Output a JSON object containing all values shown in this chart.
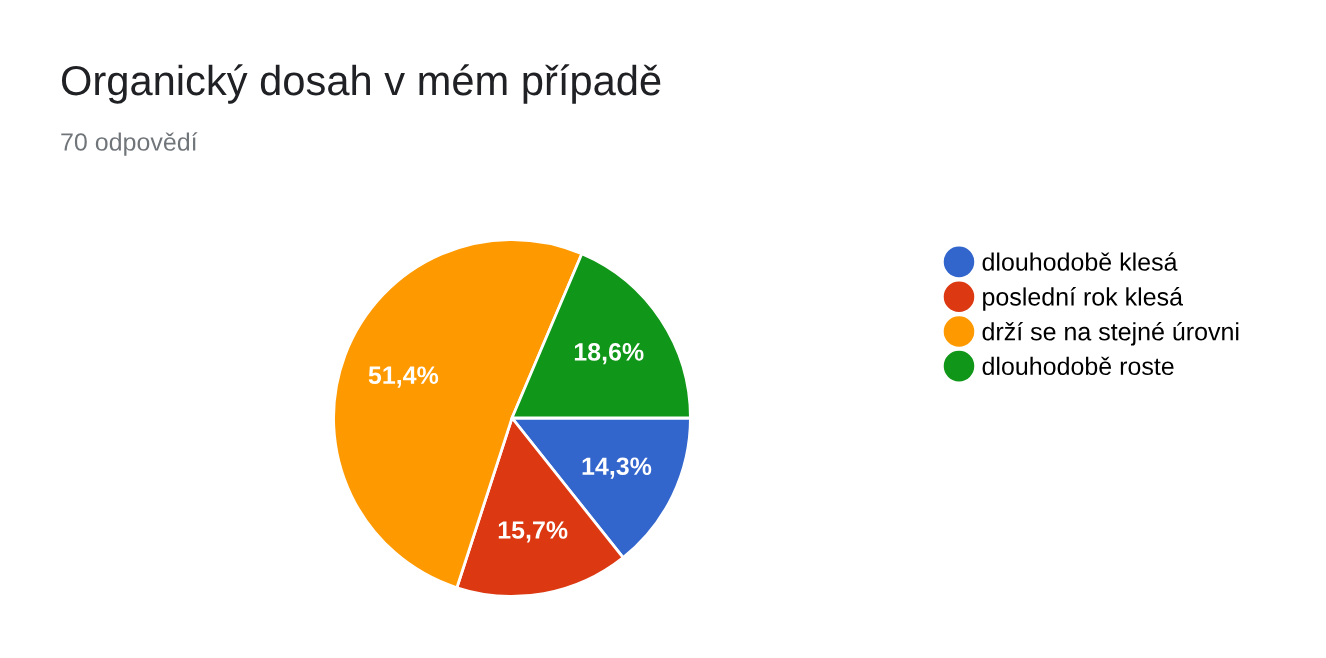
{
  "chart_data": {
    "type": "pie",
    "title": "Organický dosah v mém případě",
    "subtitle": "70 odpovědí",
    "categories": [
      "dlouhodobě klesá",
      "poslední rok klesá",
      "drží se na stejné úrovni",
      "dlouhodobě roste"
    ],
    "values": [
      14.3,
      15.7,
      51.4,
      18.6
    ],
    "value_labels": [
      "14,3%",
      "15,7%",
      "51,4%",
      "18,6%"
    ],
    "colors": [
      "#3366cc",
      "#dc3912",
      "#ff9900",
      "#109618"
    ],
    "legend": "right"
  }
}
